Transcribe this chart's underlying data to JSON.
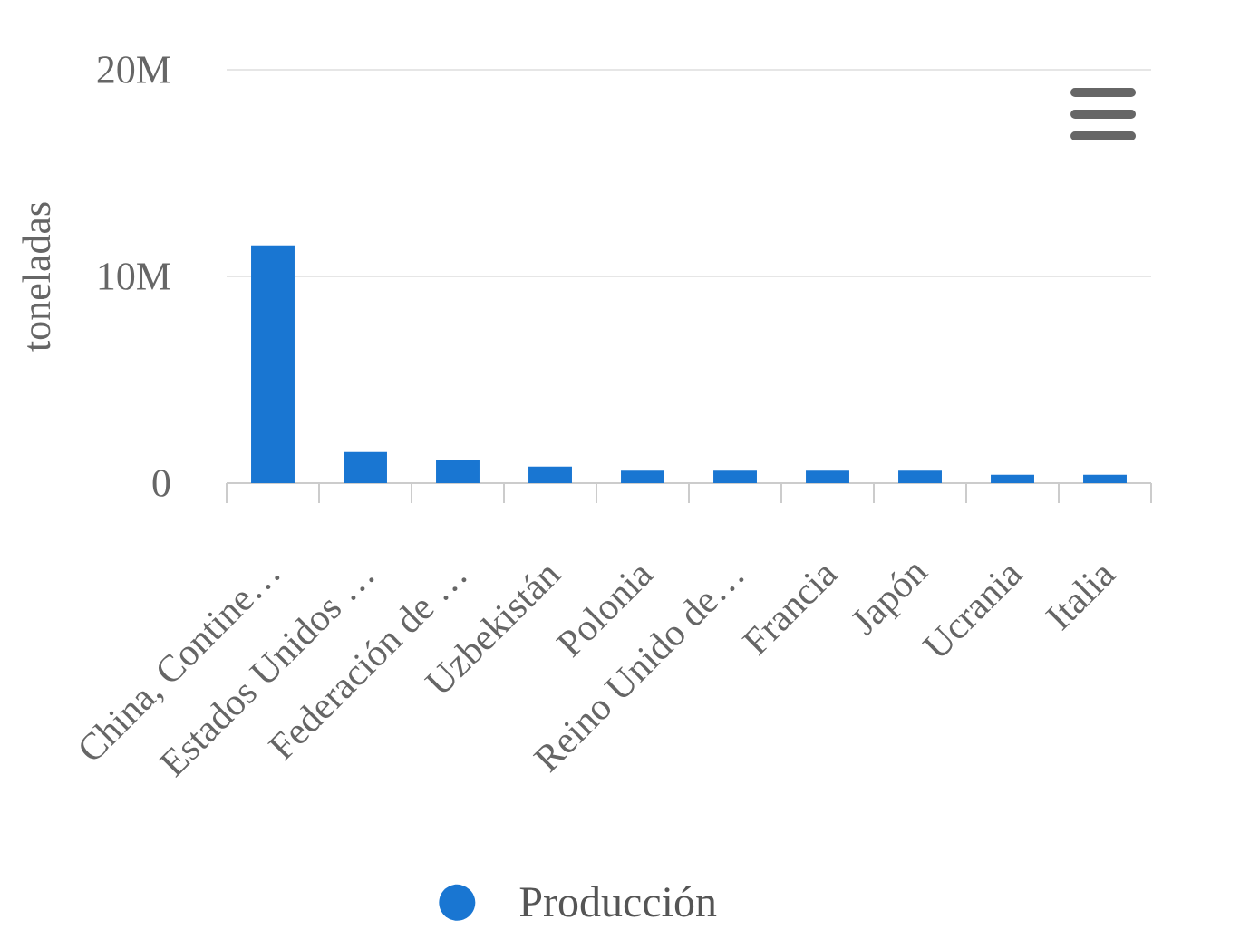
{
  "chart_data": {
    "type": "bar",
    "ylabel": "toneladas",
    "categories": [
      "China, Contine…",
      "Estados Unidos …",
      "Federación de …",
      "Uzbekistán",
      "Polonia",
      "Reino Unido de…",
      "Francia",
      "Japón",
      "Ucrania",
      "Italia"
    ],
    "series": [
      {
        "name": "Producción",
        "color": "#1976d2",
        "values": [
          11500000,
          1500000,
          1100000,
          800000,
          600000,
          600000,
          600000,
          600000,
          400000,
          400000
        ]
      }
    ],
    "ylim": [
      0,
      20000000
    ],
    "yticks": [
      0,
      {
        "value": 10000000,
        "label": "10M"
      },
      {
        "value": 20000000,
        "label": "20M"
      }
    ],
    "grid": "y",
    "legend": "bottom"
  }
}
